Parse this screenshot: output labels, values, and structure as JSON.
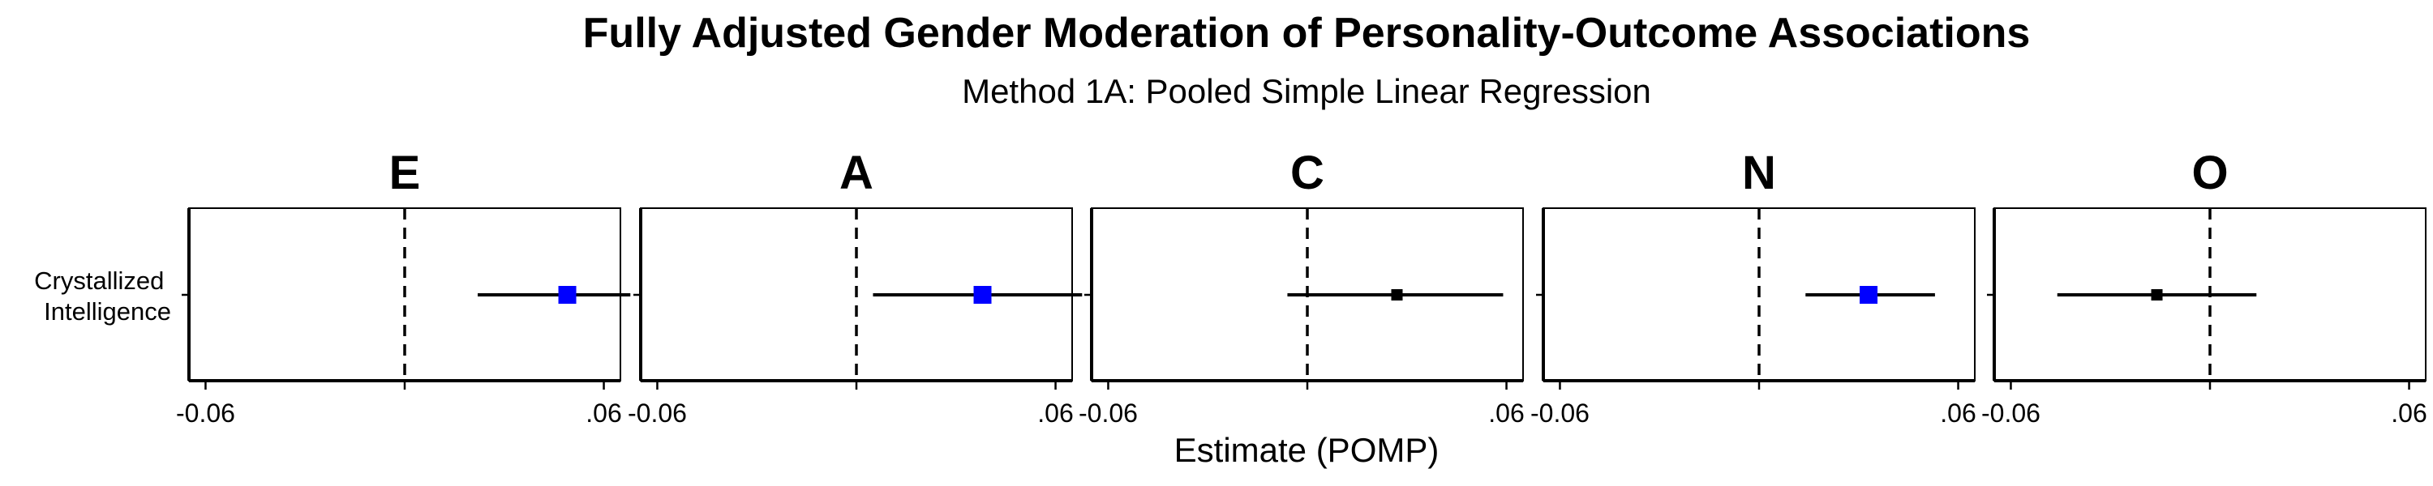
{
  "chart_data": {
    "type": "forest",
    "title": "Fully Adjusted Gender Moderation of Personality-Outcome Associations",
    "subtitle": "Method 1A: Pooled Simple Linear Regression",
    "xlabel": "Estimate (POMP)",
    "row_label_lines": [
      "Crystallized",
      "Intelligence"
    ],
    "xlim": [
      -0.065,
      0.065
    ],
    "x_ticks": [
      {
        "value": -0.06,
        "label": "-0.06"
      },
      {
        "value": 0.0,
        "label": ""
      },
      {
        "value": 0.06,
        "label": ".06"
      }
    ],
    "reference_line": 0.0,
    "significant_color": "#0000ff",
    "nonsignificant_color": "#000000",
    "panels": [
      {
        "label": "E",
        "estimate": 0.049,
        "ci": [
          0.022,
          0.068
        ],
        "significant": true
      },
      {
        "label": "A",
        "estimate": 0.038,
        "ci": [
          0.005,
          0.068
        ],
        "significant": true
      },
      {
        "label": "C",
        "estimate": 0.027,
        "ci": [
          -0.006,
          0.059
        ],
        "significant": false
      },
      {
        "label": "N",
        "estimate": 0.033,
        "ci": [
          0.014,
          0.053
        ],
        "significant": true
      },
      {
        "label": "O",
        "estimate": -0.016,
        "ci": [
          -0.046,
          0.014
        ],
        "significant": false
      }
    ]
  }
}
